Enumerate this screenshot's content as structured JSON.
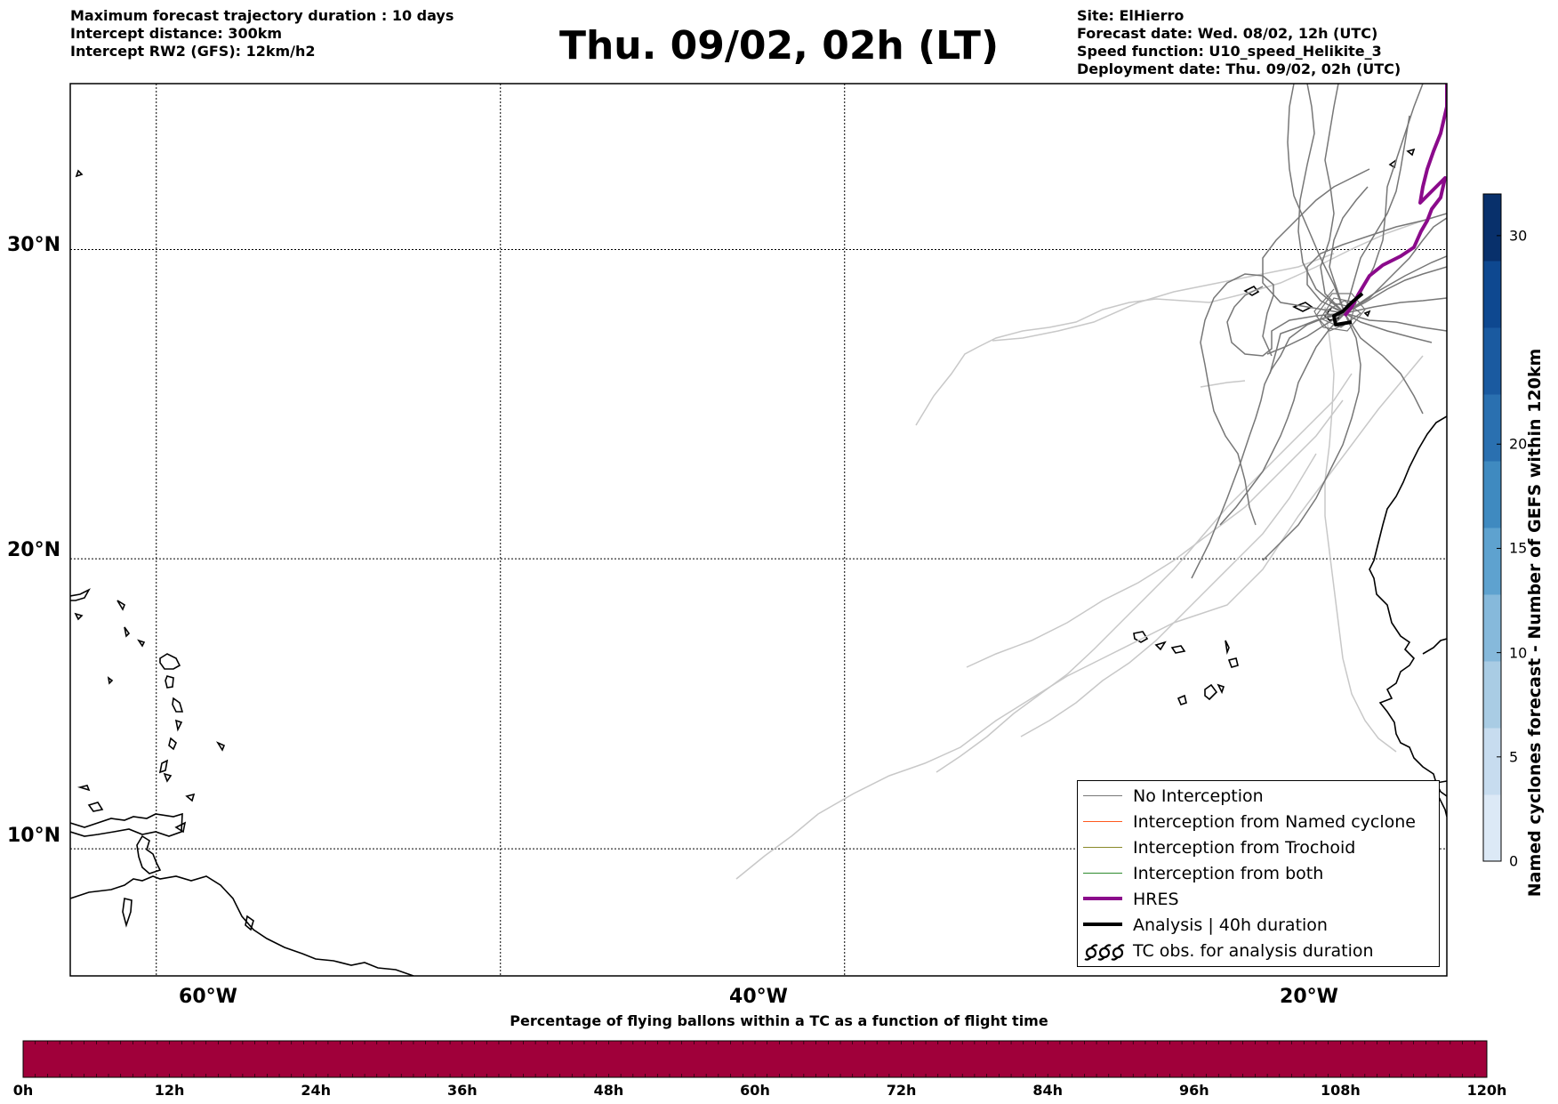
{
  "header": {
    "left_lines": [
      "Maximum forecast trajectory duration : 10 days",
      "Intercept distance: 300km",
      "Intercept RW2 (GFS):  12km/h2"
    ],
    "title": "Thu. 09/02, 02h (LT)",
    "right_lines": [
      "Site: ElHierro",
      "Forecast date: Wed. 08/02, 12h (UTC)",
      "Speed function: U10_speed_Helikite_3",
      "Deployment date: Thu. 09/02, 02h (UTC)"
    ]
  },
  "map": {
    "lon_range": [
      -65,
      15
    ],
    "lat_range": [
      5.5,
      35
    ],
    "lat_labels": [
      {
        "lat": 30,
        "text": "30°N"
      },
      {
        "lat": 20,
        "text": "20°N"
      },
      {
        "lat": 10,
        "text": "10°N"
      }
    ],
    "lon_labels": [
      {
        "lon": -60,
        "text": "60°W"
      },
      {
        "lon": -40,
        "text": "40°W"
      },
      {
        "lon": -20,
        "text": "20°W"
      }
    ],
    "colors": {
      "no_interception": "#777777",
      "named_cyclone": "#ff5a1f",
      "trochoid": "#8a8a2a",
      "both": "#2e8b2e",
      "hres": "#8b0a8b",
      "analysis": "#000000",
      "faded_track": "#c8c8c8"
    }
  },
  "legend": {
    "items": [
      {
        "label": "No Interception",
        "style": "no_interception"
      },
      {
        "label": "Interception from Named cyclone",
        "style": "named_cyclone"
      },
      {
        "label": "Interception from Trochoid",
        "style": "trochoid"
      },
      {
        "label": "Interception from both",
        "style": "both"
      },
      {
        "label": "HRES",
        "style": "hres"
      },
      {
        "label": "Analysis | 40h duration",
        "style": "analysis"
      },
      {
        "label": "TC obs. for analysis duration",
        "style": "tc_obs"
      }
    ]
  },
  "colorbar_right": {
    "label": "Named cyclones forecast - Number of GEFS within 120km",
    "range": [
      0,
      32
    ],
    "ticks": [
      0,
      5,
      10,
      15,
      20,
      30
    ],
    "colors": [
      "#dce9f6",
      "#c7dcef",
      "#a9cce4",
      "#86b9db",
      "#5ea2cf",
      "#3f8ac0",
      "#2a70b0",
      "#1a5aa0",
      "#0e4890",
      "#08306b"
    ]
  },
  "colorbar_bottom": {
    "title": "Percentage of flying ballons within a TC as a function of flight time",
    "color": "#a0003a",
    "tick_labels": [
      "0h",
      "12h",
      "24h",
      "36h",
      "48h",
      "60h",
      "72h",
      "84h",
      "96h",
      "108h",
      "120h"
    ]
  }
}
